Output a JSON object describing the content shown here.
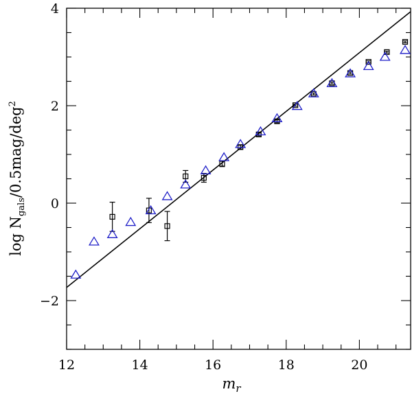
{
  "chart_data": {
    "type": "scatter",
    "title": "",
    "xlabel": "m",
    "xlabel_sub": "r",
    "ylabel": "log N",
    "ylabel_sub": "gals",
    "ylabel_tail": "/0.5mag/deg",
    "ylabel_sup": "2",
    "xlim": [
      12,
      21.4
    ],
    "ylim": [
      -3,
      4
    ],
    "x_ticks": [
      "12",
      "14",
      "16",
      "18",
      "20"
    ],
    "y_ticks": [
      "−2",
      "0",
      "2",
      "4"
    ],
    "fit_line": {
      "x": [
        12,
        21.4
      ],
      "y": [
        -1.73,
        3.93
      ]
    },
    "series": [
      {
        "marker": "square",
        "color": "#000000",
        "points": [
          {
            "x": 13.25,
            "y": -0.28,
            "err": 0.3
          },
          {
            "x": 14.25,
            "y": -0.15,
            "err": 0.25
          },
          {
            "x": 14.75,
            "y": -0.47,
            "err": 0.3
          },
          {
            "x": 15.25,
            "y": 0.55,
            "err": 0.12
          },
          {
            "x": 15.75,
            "y": 0.52,
            "err": 0.09
          },
          {
            "x": 16.25,
            "y": 0.81,
            "err": 0.06
          },
          {
            "x": 16.75,
            "y": 1.15,
            "err": 0.04
          },
          {
            "x": 17.25,
            "y": 1.41,
            "err": 0.03
          },
          {
            "x": 17.75,
            "y": 1.68,
            "err": 0.03
          },
          {
            "x": 18.25,
            "y": 2.01,
            "err": 0.02
          },
          {
            "x": 18.75,
            "y": 2.24,
            "err": 0.02
          },
          {
            "x": 19.25,
            "y": 2.46,
            "err": 0.02
          },
          {
            "x": 19.75,
            "y": 2.67,
            "err": 0.02
          },
          {
            "x": 20.25,
            "y": 2.9,
            "err": 0.02
          },
          {
            "x": 20.75,
            "y": 3.1,
            "err": 0.02
          },
          {
            "x": 21.25,
            "y": 3.31,
            "err": 0.02
          }
        ]
      },
      {
        "marker": "triangle",
        "color": "#1f1fc8",
        "points": [
          {
            "x": 12.25,
            "y": -1.47
          },
          {
            "x": 12.75,
            "y": -0.79
          },
          {
            "x": 13.25,
            "y": -0.64
          },
          {
            "x": 13.75,
            "y": -0.39
          },
          {
            "x": 14.3,
            "y": -0.15
          },
          {
            "x": 14.75,
            "y": 0.14
          },
          {
            "x": 15.25,
            "y": 0.38
          },
          {
            "x": 15.8,
            "y": 0.67
          },
          {
            "x": 16.3,
            "y": 0.94
          },
          {
            "x": 16.75,
            "y": 1.21
          },
          {
            "x": 17.3,
            "y": 1.47
          },
          {
            "x": 17.75,
            "y": 1.74
          },
          {
            "x": 18.3,
            "y": 1.99
          },
          {
            "x": 18.75,
            "y": 2.25
          },
          {
            "x": 19.25,
            "y": 2.46
          },
          {
            "x": 19.75,
            "y": 2.66
          },
          {
            "x": 20.25,
            "y": 2.81
          },
          {
            "x": 20.7,
            "y": 3.0
          },
          {
            "x": 21.25,
            "y": 3.14
          }
        ]
      }
    ],
    "grid": false
  }
}
